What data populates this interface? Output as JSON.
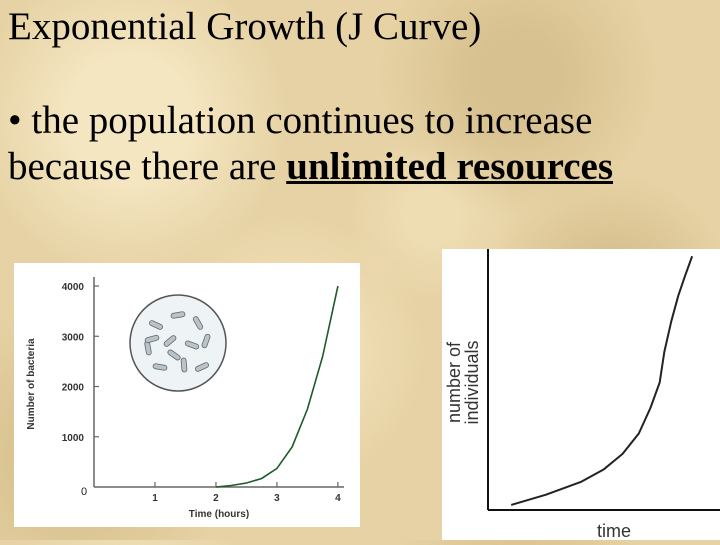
{
  "slide": {
    "title": "Exponential Growth (J Curve)",
    "bullet_symbol": "•",
    "bullet_text": "the population continues to increase because there are",
    "bullet_emphasis": "unlimited resources"
  },
  "chart_data": [
    {
      "type": "line",
      "title": "",
      "xlabel": "Time (hours)",
      "ylabel": "Number of bacteria",
      "x_ticks": [
        "1",
        "2",
        "3",
        "4"
      ],
      "y_ticks": [
        "1000",
        "2000",
        "3000",
        "4000"
      ],
      "origin_label": "0",
      "xlim": [
        0,
        4.1
      ],
      "ylim": [
        0,
        4100
      ],
      "grid": false,
      "inset": "bacteria-dish-icon",
      "line_color": "#1f5a2a",
      "series": [
        {
          "x": [
            2.0,
            2.25,
            2.5,
            2.75,
            3.0,
            3.25,
            3.5,
            3.75,
            4.0
          ],
          "y": [
            0,
            30,
            80,
            170,
            370,
            800,
            1550,
            2600,
            4000
          ]
        }
      ]
    },
    {
      "type": "line",
      "title": "",
      "xlabel": "time",
      "ylabel_lines": [
        "number of",
        "individuals"
      ],
      "xlim": [
        0,
        1
      ],
      "ylim": [
        0,
        1
      ],
      "grid": false,
      "line_color": "#222222",
      "series": [
        {
          "x": [
            0.1,
            0.25,
            0.4,
            0.5,
            0.58,
            0.65,
            0.7,
            0.74,
            0.76,
            0.79,
            0.82,
            0.85,
            0.88
          ],
          "y": [
            0.02,
            0.06,
            0.11,
            0.16,
            0.22,
            0.3,
            0.4,
            0.5,
            0.62,
            0.74,
            0.84,
            0.92,
            0.995
          ]
        }
      ]
    }
  ]
}
